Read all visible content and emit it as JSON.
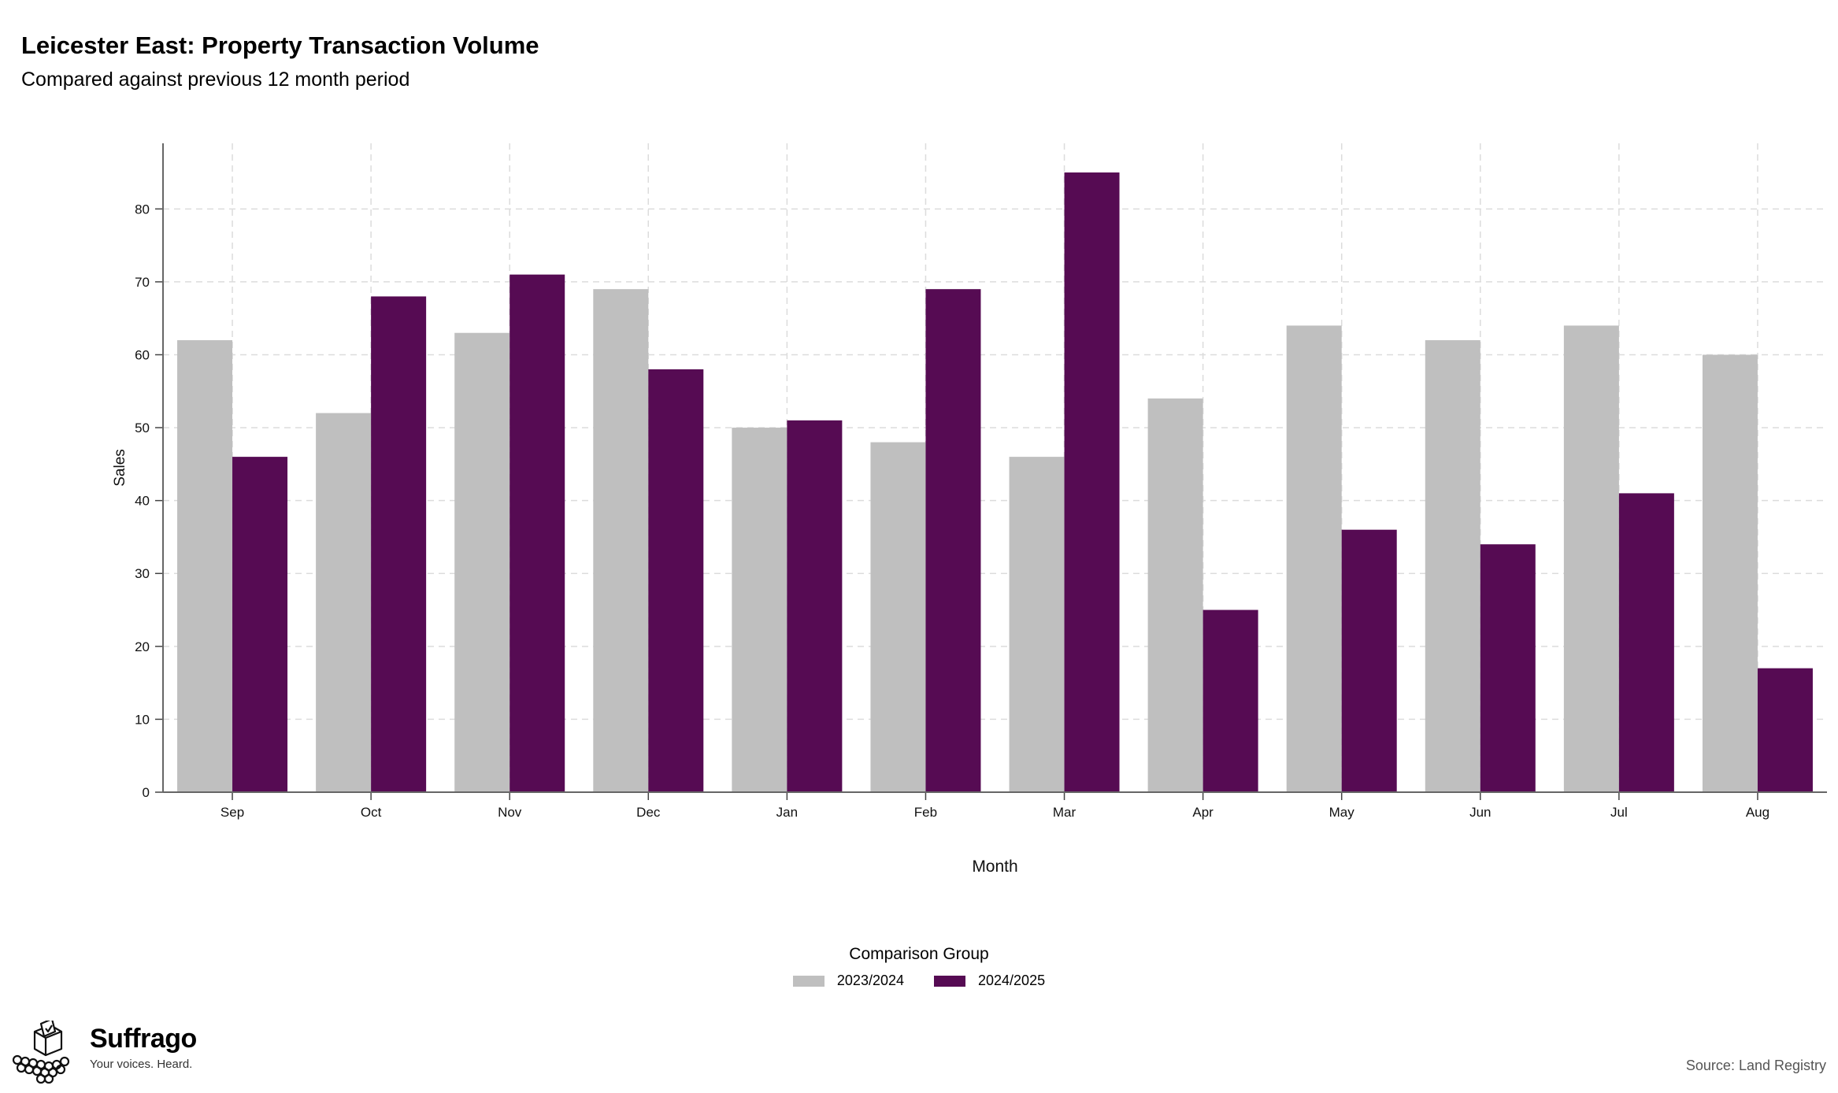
{
  "header": {
    "title": "Leicester East: Property Transaction Volume",
    "subtitle": "Compared against previous 12 month period"
  },
  "legend": {
    "title": "Comparison Group",
    "items": [
      {
        "label": "2023/2024",
        "color": "#bfbfbf"
      },
      {
        "label": "2024/2025",
        "color": "#560b53"
      }
    ]
  },
  "brand": {
    "name": "Suffrago",
    "tagline": "Your voices. Heard.",
    "icon": "ballot-box-crowd-icon"
  },
  "source": "Source: Land Registry",
  "chart_data": {
    "type": "bar",
    "title": "Leicester East: Property Transaction Volume",
    "subtitle": "Compared against previous 12 month period",
    "xlabel": "Month",
    "ylabel": "Sales",
    "ylim": [
      0,
      89
    ],
    "yticks": [
      0,
      10,
      20,
      30,
      40,
      50,
      60,
      70,
      80
    ],
    "grid": true,
    "legend_position": "bottom",
    "categories": [
      "Sep",
      "Oct",
      "Nov",
      "Dec",
      "Jan",
      "Feb",
      "Mar",
      "Apr",
      "May",
      "Jun",
      "Jul",
      "Aug"
    ],
    "series": [
      {
        "name": "2023/2024",
        "color": "#bfbfbf",
        "values": [
          62,
          52,
          63,
          69,
          50,
          48,
          46,
          54,
          64,
          62,
          64,
          60
        ]
      },
      {
        "name": "2024/2025",
        "color": "#560b53",
        "values": [
          46,
          68,
          71,
          58,
          51,
          69,
          85,
          25,
          36,
          34,
          41,
          17
        ]
      }
    ]
  }
}
